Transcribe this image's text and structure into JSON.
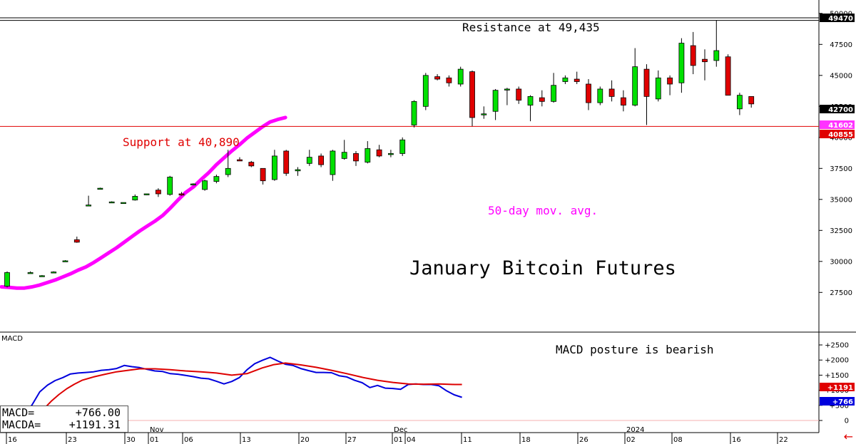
{
  "chart_data": [
    {
      "type": "candlestick",
      "title": "January Bitcoin Futures",
      "ylim": [
        26500,
        50500
      ],
      "y_ticks": [
        "50000",
        "47500",
        "45000",
        "42500",
        "40000",
        "37500",
        "35000",
        "32500",
        "30000",
        "27500"
      ],
      "x_tick_labels": [
        "16",
        "23",
        "30",
        "01",
        "06",
        "13",
        "20",
        "27",
        "01",
        "04",
        "11",
        "18",
        "26",
        "02",
        "08",
        "16",
        "22"
      ],
      "month_labels": [
        "Nov",
        "Dec",
        "2024"
      ],
      "annotations": {
        "resistance": "Resistance at 49,435",
        "support": "Support at 40,890",
        "ma": "50-day mov. avg."
      },
      "resistance_level": 49435,
      "support_level": 40890,
      "price_badges": [
        {
          "label": "49470",
          "value": 49470,
          "bg": "#000000",
          "fg": "#ffffff"
        },
        {
          "label": "42700",
          "value": 42700,
          "bg": "#000000",
          "fg": "#ffffff"
        },
        {
          "label": "41602",
          "value": 41602,
          "bg": "#ff33ff",
          "fg": "#ffffff"
        },
        {
          "label": "40855",
          "value": 40855,
          "bg": "#e00000",
          "fg": "#ffffff"
        }
      ],
      "candles": [
        [
          0,
          28000,
          29200,
          27900,
          29100
        ],
        [
          2,
          29100,
          29200,
          29100,
          29100
        ],
        [
          3,
          28850,
          28900,
          28800,
          28850
        ],
        [
          4,
          29150,
          29200,
          29100,
          29150
        ],
        [
          5,
          30050,
          30100,
          30000,
          30050
        ],
        [
          6,
          31750,
          32000,
          31500,
          31550
        ],
        [
          7,
          34550,
          35300,
          34500,
          34550
        ],
        [
          8,
          35900,
          35950,
          35850,
          35900
        ],
        [
          9,
          34800,
          34850,
          34750,
          34800
        ],
        [
          10,
          34700,
          34750,
          34650,
          34750
        ],
        [
          11,
          34950,
          35400,
          34900,
          35250
        ],
        [
          12,
          35400,
          35450,
          35350,
          35450
        ],
        [
          13,
          35750,
          35900,
          35200,
          35450
        ],
        [
          14,
          35400,
          36900,
          35300,
          36800
        ],
        [
          15,
          35450,
          35600,
          35300,
          35350
        ],
        [
          16,
          36250,
          36300,
          36200,
          36250
        ],
        [
          17,
          35800,
          36600,
          35700,
          36500
        ],
        [
          18,
          36450,
          37000,
          36300,
          36850
        ],
        [
          19,
          37000,
          39000,
          36800,
          37500
        ],
        [
          20,
          38200,
          38400,
          38100,
          38100
        ],
        [
          21,
          38000,
          38100,
          37600,
          37700
        ],
        [
          22,
          37500,
          37500,
          36200,
          36500
        ],
        [
          23,
          36600,
          39000,
          36500,
          38500
        ],
        [
          24,
          38900,
          39000,
          36900,
          37100
        ],
        [
          25,
          37300,
          37600,
          36900,
          37400
        ],
        [
          26,
          37900,
          39000,
          37700,
          38400
        ],
        [
          27,
          38500,
          38700,
          37600,
          37800
        ],
        [
          28,
          37000,
          39000,
          36500,
          38900
        ],
        [
          29,
          38300,
          39800,
          38200,
          38800
        ],
        [
          30,
          38700,
          38900,
          37700,
          38100
        ],
        [
          31,
          38000,
          39700,
          37900,
          39100
        ],
        [
          32,
          39000,
          39400,
          38400,
          38500
        ],
        [
          33,
          38700,
          39000,
          38400,
          38700
        ],
        [
          34,
          38700,
          40000,
          38500,
          39800
        ],
        [
          35,
          41000,
          43000,
          40800,
          42900
        ],
        [
          36,
          42500,
          45200,
          42200,
          45000
        ],
        [
          37,
          44900,
          45100,
          44600,
          44700
        ],
        [
          38,
          44800,
          45000,
          44100,
          44400
        ],
        [
          39,
          44300,
          45700,
          44100,
          45500
        ],
        [
          40,
          45300,
          45400,
          40900,
          41600
        ],
        [
          41,
          41900,
          42500,
          41500,
          41900
        ],
        [
          42,
          42100,
          43900,
          41400,
          43800
        ],
        [
          43,
          43900,
          44000,
          42600,
          43900
        ],
        [
          44,
          43900,
          44100,
          42700,
          43000
        ],
        [
          45,
          42600,
          43400,
          41300,
          43300
        ],
        [
          46,
          43200,
          43800,
          42500,
          42900
        ],
        [
          47,
          42900,
          45200,
          42800,
          44200
        ],
        [
          48,
          44500,
          45000,
          44300,
          44800
        ],
        [
          49,
          44700,
          45300,
          44300,
          44500
        ],
        [
          50,
          44300,
          44700,
          42200,
          42800
        ],
        [
          51,
          42800,
          44100,
          42600,
          43900
        ],
        [
          52,
          43900,
          44600,
          42900,
          43300
        ],
        [
          53,
          43200,
          43800,
          42100,
          42600
        ],
        [
          54,
          42600,
          47200,
          42500,
          45700
        ],
        [
          55,
          45500,
          45900,
          41000,
          43300
        ],
        [
          56,
          43100,
          45400,
          42900,
          44800
        ],
        [
          57,
          44800,
          45000,
          43400,
          44300
        ],
        [
          58,
          44400,
          48000,
          43600,
          47600
        ],
        [
          59,
          47400,
          48500,
          45100,
          45800
        ],
        [
          60,
          46300,
          47100,
          44600,
          46100
        ],
        [
          61,
          46200,
          49470,
          45700,
          47000
        ],
        [
          62,
          46500,
          46700,
          43500,
          43400
        ],
        [
          63,
          42300,
          43600,
          41800,
          43400
        ],
        [
          64,
          43300,
          43300,
          42400,
          42700
        ]
      ],
      "candle_colors": {
        "up": "#00e000",
        "down": "#e00000"
      },
      "ma_series": [
        [
          0,
          27950
        ],
        [
          2,
          27900
        ],
        [
          4,
          27850
        ],
        [
          6,
          27850
        ],
        [
          8,
          27950
        ],
        [
          10,
          28100
        ],
        [
          12,
          28300
        ],
        [
          14,
          28500
        ],
        [
          16,
          28750
        ],
        [
          18,
          29000
        ],
        [
          20,
          29300
        ],
        [
          22,
          29550
        ],
        [
          24,
          29900
        ],
        [
          26,
          30300
        ],
        [
          28,
          30700
        ],
        [
          30,
          31100
        ],
        [
          32,
          31550
        ],
        [
          34,
          32000
        ],
        [
          36,
          32450
        ],
        [
          38,
          32850
        ],
        [
          40,
          33250
        ],
        [
          42,
          33700
        ],
        [
          44,
          34300
        ],
        [
          46,
          34950
        ],
        [
          48,
          35550
        ],
        [
          50,
          36000
        ],
        [
          52,
          36600
        ],
        [
          54,
          37150
        ],
        [
          56,
          37800
        ],
        [
          58,
          38350
        ],
        [
          60,
          38900
        ],
        [
          62,
          39400
        ],
        [
          64,
          39950
        ],
        [
          66,
          40400
        ],
        [
          68,
          40850
        ],
        [
          70,
          41250
        ],
        [
          72,
          41450
        ],
        [
          74,
          41602
        ]
      ],
      "ma_color": "#ff00ff"
    },
    {
      "type": "line",
      "title": "MACD",
      "annotation": "MACD posture is bearish",
      "ylim": [
        -100,
        2900
      ],
      "y_ticks": [
        "+2500",
        "+2000",
        "+1500",
        "+1000",
        "+500",
        "0"
      ],
      "series": [
        {
          "name": "MACD",
          "color": "#0000dd",
          "values": [
            [
              5,
              30
            ],
            [
              8,
              520
            ],
            [
              10,
              950
            ],
            [
              12,
              1170
            ],
            [
              14,
              1320
            ],
            [
              16,
              1420
            ],
            [
              18,
              1540
            ],
            [
              20,
              1570
            ],
            [
              22,
              1590
            ],
            [
              24,
              1610
            ],
            [
              26,
              1660
            ],
            [
              28,
              1680
            ],
            [
              30,
              1720
            ],
            [
              32,
              1820
            ],
            [
              34,
              1780
            ],
            [
              36,
              1750
            ],
            [
              38,
              1690
            ],
            [
              40,
              1640
            ],
            [
              42,
              1620
            ],
            [
              44,
              1550
            ],
            [
              46,
              1530
            ],
            [
              48,
              1490
            ],
            [
              50,
              1450
            ],
            [
              52,
              1400
            ],
            [
              54,
              1380
            ],
            [
              56,
              1300
            ],
            [
              58,
              1210
            ],
            [
              60,
              1290
            ],
            [
              62,
              1420
            ],
            [
              64,
              1680
            ],
            [
              66,
              1880
            ],
            [
              68,
              1990
            ],
            [
              70,
              2090
            ],
            [
              72,
              1970
            ],
            [
              74,
              1860
            ],
            [
              76,
              1820
            ],
            [
              78,
              1720
            ],
            [
              80,
              1650
            ],
            [
              82,
              1590
            ],
            [
              84,
              1590
            ],
            [
              86,
              1580
            ],
            [
              88,
              1480
            ],
            [
              90,
              1440
            ],
            [
              92,
              1330
            ],
            [
              94,
              1250
            ],
            [
              96,
              1090
            ],
            [
              98,
              1160
            ],
            [
              100,
              1070
            ],
            [
              102,
              1060
            ],
            [
              104,
              1030
            ],
            [
              106,
              1190
            ],
            [
              108,
              1210
            ],
            [
              110,
              1190
            ],
            [
              112,
              1190
            ],
            [
              114,
              1150
            ],
            [
              116,
              980
            ],
            [
              118,
              850
            ],
            [
              120,
              766
            ]
          ]
        },
        {
          "name": "MACDA",
          "color": "#dd0000",
          "values": [
            [
              9,
              30
            ],
            [
              11,
              380
            ],
            [
              13,
              640
            ],
            [
              15,
              860
            ],
            [
              17,
              1050
            ],
            [
              19,
              1200
            ],
            [
              21,
              1330
            ],
            [
              24,
              1440
            ],
            [
              27,
              1530
            ],
            [
              30,
              1610
            ],
            [
              33,
              1660
            ],
            [
              36,
              1710
            ],
            [
              40,
              1710
            ],
            [
              44,
              1680
            ],
            [
              48,
              1640
            ],
            [
              52,
              1610
            ],
            [
              56,
              1570
            ],
            [
              60,
              1500
            ],
            [
              64,
              1550
            ],
            [
              68,
              1740
            ],
            [
              71,
              1850
            ],
            [
              74,
              1900
            ],
            [
              78,
              1840
            ],
            [
              82,
              1760
            ],
            [
              86,
              1660
            ],
            [
              90,
              1550
            ],
            [
              94,
              1430
            ],
            [
              98,
              1330
            ],
            [
              102,
              1260
            ],
            [
              106,
              1210
            ],
            [
              110,
              1200
            ],
            [
              114,
              1210
            ],
            [
              118,
              1190
            ],
            [
              120,
              1191
            ]
          ]
        }
      ],
      "badges": [
        {
          "label": "+1191",
          "value": 1191,
          "bg": "#e00000",
          "fg": "#ffffff"
        },
        {
          "label": "+766",
          "value": 766,
          "bg": "#0000dd",
          "fg": "#ffffff"
        }
      ],
      "readout": {
        "macd_label": "MACD=",
        "macd_value": "+766.00",
        "macda_label": "MACDA=",
        "macda_value": "+1191.31"
      }
    }
  ]
}
